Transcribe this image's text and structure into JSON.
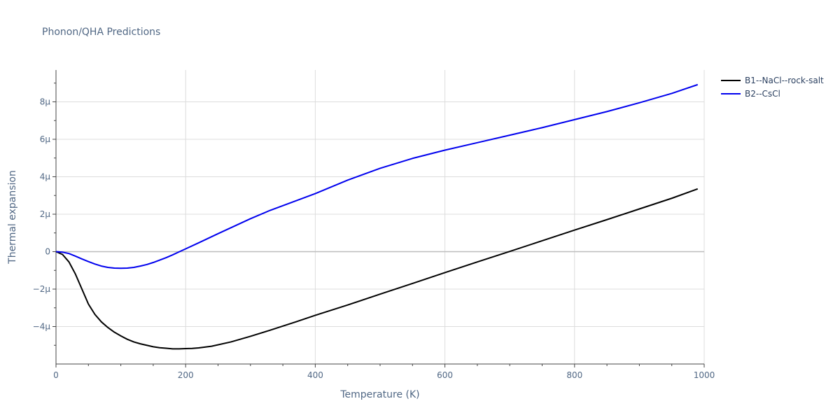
{
  "chart_data": {
    "type": "line",
    "title": "Phonon/QHA Predictions",
    "xlabel": "Temperature (K)",
    "ylabel": "Thermal expansion",
    "xlim": [
      0,
      1000
    ],
    "ylim": [
      -6e-06,
      9.7e-06
    ],
    "grid": true,
    "legend_position": "top-right",
    "x_ticks": [
      0,
      200,
      400,
      600,
      800,
      1000
    ],
    "x_tick_labels": [
      "0",
      "200",
      "400",
      "600",
      "800",
      "1000"
    ],
    "y_ticks": [
      -4e-06,
      -2e-06,
      0,
      2e-06,
      4e-06,
      6e-06,
      8e-06
    ],
    "y_tick_labels": [
      "−4μ",
      "−2μ",
      "0",
      "2μ",
      "4μ",
      "6μ",
      "8μ"
    ],
    "series": [
      {
        "name": "B1--NaCl--rock-salt",
        "color": "#000000",
        "x": [
          0,
          10,
          20,
          30,
          40,
          50,
          60,
          70,
          80,
          90,
          100,
          110,
          120,
          130,
          140,
          150,
          160,
          170,
          180,
          190,
          200,
          210,
          220,
          240,
          270,
          300,
          330,
          370,
          400,
          450,
          500,
          550,
          600,
          650,
          700,
          750,
          800,
          850,
          900,
          950,
          990
        ],
        "y": [
          0,
          -1.5e-07,
          -5.5e-07,
          -1.2e-06,
          -2e-06,
          -2.8e-06,
          -3.35e-06,
          -3.75e-06,
          -4.05e-06,
          -4.3e-06,
          -4.5e-06,
          -4.68e-06,
          -4.82e-06,
          -4.92e-06,
          -5e-06,
          -5.08e-06,
          -5.13e-06,
          -5.16e-06,
          -5.19e-06,
          -5.19e-06,
          -5.18e-06,
          -5.17e-06,
          -5.14e-06,
          -5.05e-06,
          -4.82e-06,
          -4.52e-06,
          -4.2e-06,
          -3.75e-06,
          -3.4e-06,
          -2.85e-06,
          -2.27e-06,
          -1.7e-06,
          -1.12e-06,
          -5.5e-07,
          1e-08,
          5.8e-07,
          1.15e-06,
          1.71e-06,
          2.28e-06,
          2.85e-06,
          3.35e-06
        ]
      },
      {
        "name": "B2--CsCl",
        "color": "#0000ee",
        "x": [
          0,
          10,
          20,
          30,
          40,
          50,
          60,
          70,
          80,
          90,
          100,
          110,
          120,
          130,
          140,
          150,
          160,
          170,
          180,
          190,
          200,
          220,
          250,
          300,
          330,
          400,
          450,
          500,
          550,
          600,
          650,
          700,
          750,
          800,
          850,
          900,
          950,
          990
        ],
        "y": [
          0,
          -3e-08,
          -1e-07,
          -2.4e-07,
          -3.9e-07,
          -5.3e-07,
          -6.6e-07,
          -7.7e-07,
          -8.4e-07,
          -8.8e-07,
          -8.9e-07,
          -8.8e-07,
          -8.4e-07,
          -7.7e-07,
          -6.9e-07,
          -5.8e-07,
          -4.5e-07,
          -3.2e-07,
          -1.7e-07,
          -1e-08,
          1.5e-07,
          4.7e-07,
          9.6e-07,
          1.76e-06,
          2.2e-06,
          3.1e-06,
          3.82e-06,
          4.45e-06,
          4.98e-06,
          5.42e-06,
          5.82e-06,
          6.22e-06,
          6.62e-06,
          7.05e-06,
          7.48e-06,
          7.95e-06,
          8.45e-06,
          8.92e-06
        ]
      }
    ]
  }
}
